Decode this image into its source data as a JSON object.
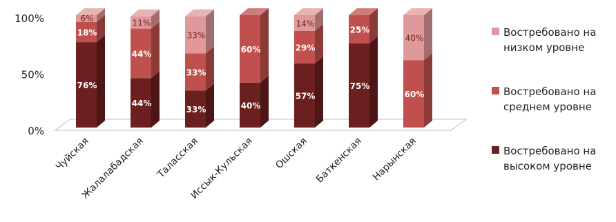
{
  "chart_data": {
    "type": "bar",
    "stacked": true,
    "percent": true,
    "three_d": true,
    "categories": [
      "Чуйская",
      "Жалалабадская",
      "Таласская",
      "Иссык-Кульская",
      "Ошская",
      "Баткенская",
      "Нарынская"
    ],
    "series": [
      {
        "name": "Востребовано на высоком уровне",
        "values": [
          76,
          44,
          33,
          40,
          57,
          75,
          0
        ],
        "color": "#6b1f1f",
        "label_color": "#ffffff"
      },
      {
        "name": "Востребовано на среднем уровне",
        "values": [
          18,
          44,
          33,
          60,
          29,
          25,
          60
        ],
        "color": "#c0504d",
        "label_color": "#ffffff"
      },
      {
        "name": "Востребовано на низком уровне",
        "values": [
          6,
          11,
          33,
          0,
          14,
          0,
          40
        ],
        "color": "#e0999a",
        "label_color": "#7a2020"
      }
    ],
    "data_labels": [
      [
        "76%",
        "44%",
        "33%",
        "40%",
        "57%",
        "75%",
        ""
      ],
      [
        "18%",
        "44%",
        "33%",
        "60%",
        "29%",
        "25%",
        "60%"
      ],
      [
        "6%",
        "11%",
        "33%",
        "",
        "14%",
        "",
        "40%"
      ]
    ],
    "y_ticks": [
      {
        "value": 0,
        "label": "0%"
      },
      {
        "value": 50,
        "label": "50%"
      },
      {
        "value": 100,
        "label": "100%"
      }
    ],
    "ylim": [
      0,
      100
    ],
    "legend_position": "right",
    "legend_order": [
      2,
      1,
      0
    ],
    "grid": false
  }
}
